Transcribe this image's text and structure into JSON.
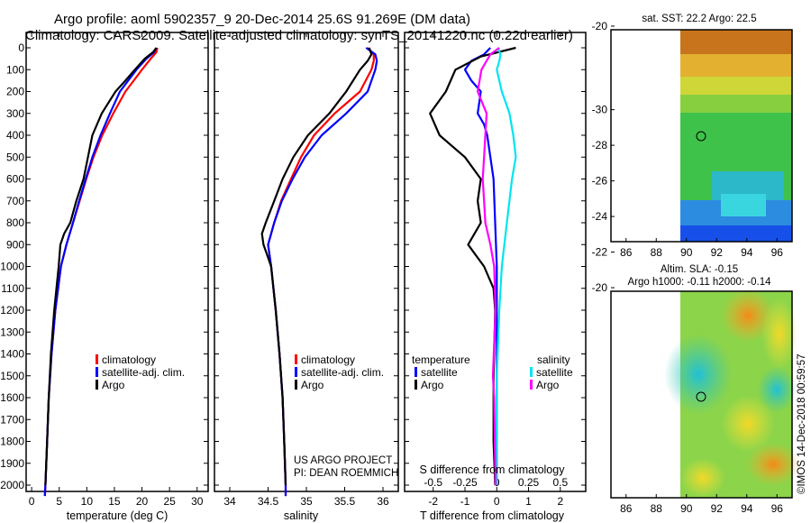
{
  "title_line1": "Argo profile: aoml 5902357_9 20-Dec-2014 25.6S 91.269E (DM data)",
  "title_line2": "Climatology: CARS2009. Satellite-adjusted climatology: synTS_20141220.nc (0.22d earlier)",
  "colors": {
    "climatology": "#ff0000",
    "satellite": "#0000ff",
    "argo": "#000000",
    "sat_salinity": "#00e5ee",
    "clim_salinity": "#ff00ff"
  },
  "depth_ticks": [
    "0",
    "100",
    "200",
    "300",
    "400",
    "500",
    "600",
    "700",
    "800",
    "900",
    "1000",
    "1100",
    "1200",
    "1300",
    "1400",
    "1500",
    "1600",
    "1700",
    "1800",
    "1900",
    "2000"
  ],
  "chart_data": [
    {
      "type": "line",
      "name": "temperature",
      "xlabel": "temperature (deg C)",
      "ylabel": "depth (dbar)",
      "xlim": [
        -1,
        32
      ],
      "ylim": [
        2060,
        0
      ],
      "xticks": [
        "0",
        "5",
        "10",
        "15",
        "20",
        "25",
        "30"
      ],
      "legend": [
        "climatology",
        "satellite-adj. clim.",
        "Argo"
      ],
      "series": [
        {
          "name": "climatology",
          "color": "red",
          "depth": [
            0,
            20,
            50,
            100,
            150,
            200,
            300,
            400,
            500,
            600,
            700,
            800,
            900,
            1000,
            1200,
            1400,
            1600,
            1800,
            2000,
            2050
          ],
          "values": [
            22.8,
            22.6,
            21.6,
            20.0,
            18.5,
            17.0,
            14.8,
            12.8,
            11.2,
            9.9,
            8.7,
            7.5,
            6.3,
            5.3,
            4.3,
            3.6,
            3.1,
            2.8,
            2.5,
            2.4
          ]
        },
        {
          "name": "satellite-adj. clim.",
          "color": "blue",
          "depth": [
            0,
            20,
            50,
            100,
            150,
            200,
            300,
            400,
            500,
            600,
            700,
            800,
            900,
            1000,
            1200,
            1400,
            1600,
            1800,
            2000,
            2050
          ],
          "values": [
            22.6,
            22.2,
            20.8,
            19.0,
            17.5,
            16.0,
            14.2,
            12.5,
            11.0,
            9.8,
            8.6,
            7.5,
            6.3,
            5.3,
            4.3,
            3.6,
            3.1,
            2.8,
            2.5,
            2.4
          ]
        },
        {
          "name": "Argo",
          "color": "black",
          "depth": [
            0,
            20,
            50,
            100,
            150,
            200,
            300,
            400,
            500,
            600,
            700,
            800,
            850,
            900,
            1000,
            1200,
            1400,
            1600,
            1800,
            2000
          ],
          "values": [
            22.6,
            22.0,
            20.5,
            18.7,
            17.0,
            15.2,
            12.7,
            11.0,
            10.2,
            9.4,
            8.1,
            7.0,
            5.9,
            5.2,
            4.9,
            4.1,
            3.5,
            3.1,
            2.8,
            2.5
          ]
        }
      ]
    },
    {
      "type": "line",
      "name": "salinity",
      "xlabel": "salinity",
      "ylabel": "depth (dbar)",
      "xlim": [
        33.8,
        36.2
      ],
      "ylim": [
        2060,
        0
      ],
      "xticks": [
        "34",
        "34.5",
        "35",
        "35.5",
        "36"
      ],
      "legend": [
        "climatology",
        "satellite-adj. clim.",
        "Argo"
      ],
      "series": [
        {
          "name": "climatology",
          "color": "red",
          "depth": [
            0,
            30,
            60,
            100,
            200,
            300,
            400,
            500,
            600,
            700,
            800,
            900,
            1000,
            1200,
            1400,
            1600,
            1800,
            2000,
            2050
          ],
          "values": [
            35.8,
            35.88,
            35.88,
            35.85,
            35.7,
            35.37,
            35.1,
            34.93,
            34.8,
            34.67,
            34.58,
            34.5,
            34.54,
            34.6,
            34.65,
            34.69,
            34.71,
            34.73,
            34.73
          ]
        },
        {
          "name": "satellite-adj. clim.",
          "color": "blue",
          "depth": [
            0,
            30,
            60,
            100,
            200,
            300,
            400,
            500,
            600,
            700,
            800,
            900,
            1000,
            1200,
            1400,
            1600,
            1800,
            2000,
            2050
          ],
          "values": [
            35.78,
            35.9,
            35.92,
            35.9,
            35.8,
            35.52,
            35.2,
            34.98,
            34.82,
            34.68,
            34.58,
            34.5,
            34.54,
            34.6,
            34.65,
            34.69,
            34.71,
            34.73,
            34.73
          ]
        },
        {
          "name": "Argo",
          "color": "black",
          "depth": [
            0,
            30,
            60,
            100,
            200,
            300,
            400,
            500,
            600,
            700,
            800,
            850,
            900,
            950,
            1000,
            1200,
            1400,
            1600,
            1800,
            2000
          ],
          "values": [
            35.82,
            35.85,
            35.8,
            35.7,
            35.52,
            35.3,
            35.02,
            34.83,
            34.69,
            34.58,
            34.47,
            34.42,
            34.44,
            34.49,
            34.54,
            34.6,
            34.65,
            34.69,
            34.71,
            34.73
          ]
        }
      ]
    },
    {
      "type": "line",
      "name": "difference",
      "xlabel": "T difference from climatology",
      "xlabel_top": "S difference from climatology",
      "xlim": [
        -2.9,
        2.8
      ],
      "ylim": [
        2060,
        0
      ],
      "xticks": [
        "-2",
        "-1",
        "0",
        "1",
        "2"
      ],
      "xticks_top": [
        "-0.5",
        "-0.25",
        "0",
        "0.25",
        "0.5"
      ],
      "legend_left_title": "temperature",
      "legend_right_title": "salinity",
      "legend_left": [
        "satellite",
        "Argo"
      ],
      "legend_right": [
        "satellite",
        "Argo"
      ],
      "series": [
        {
          "name": "T satellite",
          "color": "blue",
          "depth": [
            0,
            30,
            60,
            100,
            150,
            200,
            300,
            350,
            400,
            500,
            600,
            800,
            1000,
            1200,
            1500,
            2000
          ],
          "values": [
            -0.2,
            -0.4,
            -0.8,
            -1.0,
            -0.8,
            -0.5,
            -0.6,
            -0.4,
            -0.3,
            -0.2,
            -0.1,
            -0.05,
            0,
            0,
            0,
            0
          ]
        },
        {
          "name": "T Argo",
          "color": "black",
          "depth": [
            0,
            40,
            100,
            200,
            300,
            400,
            500,
            600,
            700,
            800,
            900,
            1000,
            1100,
            1200,
            1500,
            1800,
            2000
          ],
          "values": [
            0.6,
            -0.5,
            -1.3,
            -1.6,
            -2.1,
            -1.8,
            -1.0,
            -0.5,
            -0.6,
            -0.5,
            -0.9,
            -0.4,
            -0.1,
            -0.05,
            -0.1,
            -0.1,
            -0.05
          ]
        },
        {
          "name": "S satellite",
          "color": "cyan",
          "depth": [
            0,
            30,
            60,
            100,
            200,
            300,
            400,
            500,
            600,
            800,
            1000,
            1200,
            1500,
            2000
          ],
          "values": [
            0.01,
            0.03,
            0.02,
            0.0,
            0.04,
            0.1,
            0.13,
            0.15,
            0.12,
            0.08,
            0.04,
            0.02,
            0.0,
            0.0
          ]
        },
        {
          "name": "S Argo",
          "color": "magenta",
          "depth": [
            0,
            30,
            60,
            100,
            200,
            300,
            400,
            500,
            600,
            700,
            800,
            900,
            1000,
            1200,
            1500,
            1600,
            2000
          ],
          "values": [
            0.02,
            -0.05,
            -0.08,
            -0.12,
            -0.15,
            -0.08,
            -0.09,
            -0.1,
            -0.11,
            -0.1,
            -0.09,
            -0.05,
            -0.02,
            -0.01,
            -0.03,
            -0.02,
            -0.01
          ]
        }
      ]
    }
  ],
  "maps": {
    "sst_title": "sat. SST: 22.2 Argo: 22.5",
    "sla_title_line1": "Altim. SLA: -0.15",
    "sla_title_line2": "Argo h1000: -0.11 h2000: -0.14",
    "lat_ticks": [
      "-20",
      "-22",
      "-24",
      "-26",
      "-28",
      "-30"
    ],
    "lon_ticks": [
      "86",
      "88",
      "90",
      "92",
      "94",
      "96"
    ],
    "float_position": {
      "lon": 91.269,
      "lat": -25.6
    }
  },
  "credit_line1": "US ARGO PROJECT",
  "credit_line2": "PI: DEAN ROEMMICH",
  "timestamp": "©IMOS 14-Dec-2018 00:59:57"
}
